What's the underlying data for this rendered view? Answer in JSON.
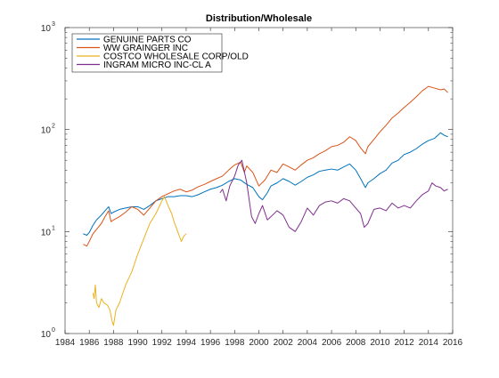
{
  "chart_data": {
    "type": "line",
    "title": "Distribution/Wholesale",
    "xlabel": "",
    "ylabel": "",
    "y_scale": "log",
    "xlim": [
      1984,
      2016
    ],
    "ylim": [
      1,
      1000
    ],
    "x_ticks": [
      1984,
      1986,
      1988,
      1990,
      1992,
      1994,
      1996,
      1998,
      2000,
      2002,
      2004,
      2006,
      2008,
      2010,
      2012,
      2014,
      2016
    ],
    "x_tick_labels": [
      "1984",
      "1986",
      "1988",
      "1990",
      "1992",
      "1994",
      "1996",
      "1998",
      "2000",
      "2002",
      "2004",
      "2006",
      "2008",
      "2010",
      "2012",
      "2014",
      "2016"
    ],
    "y_ticks": [
      {
        "value": 1,
        "base": "10",
        "exp": "0"
      },
      {
        "value": 10,
        "base": "10",
        "exp": "1"
      },
      {
        "value": 100,
        "base": "10",
        "exp": "2"
      },
      {
        "value": 1000,
        "base": "10",
        "exp": "3"
      }
    ],
    "grid": false,
    "legend_position": "top-left",
    "series": [
      {
        "name": "GENUINE PARTS CO",
        "color": "#0072BD",
        "points": [
          [
            1985.5,
            9.5
          ],
          [
            1985.8,
            9.2
          ],
          [
            1986.0,
            9.8
          ],
          [
            1986.3,
            11.5
          ],
          [
            1986.6,
            13.0
          ],
          [
            1987.0,
            14.5
          ],
          [
            1987.3,
            16.0
          ],
          [
            1987.6,
            17.5
          ],
          [
            1987.8,
            15.0
          ],
          [
            1988.0,
            15.5
          ],
          [
            1988.5,
            16.5
          ],
          [
            1989.0,
            17.0
          ],
          [
            1989.5,
            17.5
          ],
          [
            1990.0,
            17.5
          ],
          [
            1990.5,
            16.5
          ],
          [
            1991.0,
            18.0
          ],
          [
            1991.5,
            20.0
          ],
          [
            1992.0,
            21.0
          ],
          [
            1992.5,
            22.0
          ],
          [
            1993.0,
            22.0
          ],
          [
            1993.5,
            22.5
          ],
          [
            1994.0,
            22.5
          ],
          [
            1994.5,
            22.0
          ],
          [
            1995.0,
            23.0
          ],
          [
            1995.5,
            24.5
          ],
          [
            1996.0,
            26.0
          ],
          [
            1996.5,
            27.0
          ],
          [
            1997.0,
            28.5
          ],
          [
            1997.5,
            31.0
          ],
          [
            1998.0,
            33.0
          ],
          [
            1998.5,
            32.0
          ],
          [
            1999.0,
            29.0
          ],
          [
            1999.5,
            27.0
          ],
          [
            2000.0,
            22.0
          ],
          [
            2000.3,
            20.5
          ],
          [
            2000.7,
            24.0
          ],
          [
            2001.0,
            28.0
          ],
          [
            2001.5,
            30.0
          ],
          [
            2002.0,
            33.0
          ],
          [
            2002.5,
            31.0
          ],
          [
            2003.0,
            28.5
          ],
          [
            2003.5,
            31.0
          ],
          [
            2004.0,
            34.0
          ],
          [
            2004.5,
            36.0
          ],
          [
            2005.0,
            39.0
          ],
          [
            2005.5,
            40.0
          ],
          [
            2006.0,
            41.0
          ],
          [
            2006.5,
            40.0
          ],
          [
            2007.0,
            43.0
          ],
          [
            2007.5,
            46.0
          ],
          [
            2008.0,
            40.0
          ],
          [
            2008.4,
            33.0
          ],
          [
            2008.8,
            27.0
          ],
          [
            2009.0,
            30.0
          ],
          [
            2009.5,
            33.0
          ],
          [
            2010.0,
            37.0
          ],
          [
            2010.5,
            40.0
          ],
          [
            2011.0,
            47.0
          ],
          [
            2011.5,
            50.0
          ],
          [
            2012.0,
            57.0
          ],
          [
            2012.5,
            60.0
          ],
          [
            2013.0,
            65.0
          ],
          [
            2013.5,
            72.0
          ],
          [
            2014.0,
            78.0
          ],
          [
            2014.5,
            82.0
          ],
          [
            2015.0,
            93.0
          ],
          [
            2015.3,
            88.0
          ],
          [
            2015.6,
            85.0
          ]
        ]
      },
      {
        "name": "WW GRAINGER INC",
        "color": "#D95319",
        "points": [
          [
            1985.5,
            7.5
          ],
          [
            1985.8,
            7.2
          ],
          [
            1986.0,
            8.0
          ],
          [
            1986.3,
            9.5
          ],
          [
            1986.6,
            10.5
          ],
          [
            1987.0,
            12.0
          ],
          [
            1987.3,
            14.0
          ],
          [
            1987.6,
            16.0
          ],
          [
            1987.8,
            12.5
          ],
          [
            1988.0,
            13.0
          ],
          [
            1988.5,
            14.0
          ],
          [
            1989.0,
            15.5
          ],
          [
            1989.5,
            17.5
          ],
          [
            1990.0,
            16.5
          ],
          [
            1990.5,
            14.5
          ],
          [
            1991.0,
            17.0
          ],
          [
            1991.5,
            20.0
          ],
          [
            1992.0,
            22.0
          ],
          [
            1992.5,
            23.5
          ],
          [
            1993.0,
            25.0
          ],
          [
            1993.5,
            26.0
          ],
          [
            1994.0,
            24.5
          ],
          [
            1994.5,
            25.5
          ],
          [
            1995.0,
            27.5
          ],
          [
            1995.5,
            29.0
          ],
          [
            1996.0,
            31.0
          ],
          [
            1996.5,
            33.0
          ],
          [
            1997.0,
            35.0
          ],
          [
            1997.5,
            40.0
          ],
          [
            1998.0,
            45.0
          ],
          [
            1998.5,
            48.0
          ],
          [
            1998.8,
            38.0
          ],
          [
            1999.0,
            44.0
          ],
          [
            1999.5,
            38.0
          ],
          [
            2000.0,
            28.0
          ],
          [
            2000.5,
            32.0
          ],
          [
            2001.0,
            40.0
          ],
          [
            2001.5,
            38.0
          ],
          [
            2002.0,
            46.0
          ],
          [
            2002.5,
            43.0
          ],
          [
            2003.0,
            40.0
          ],
          [
            2003.5,
            45.0
          ],
          [
            2004.0,
            50.0
          ],
          [
            2004.5,
            53.0
          ],
          [
            2005.0,
            58.0
          ],
          [
            2005.5,
            62.0
          ],
          [
            2006.0,
            68.0
          ],
          [
            2006.5,
            70.0
          ],
          [
            2007.0,
            75.0
          ],
          [
            2007.5,
            85.0
          ],
          [
            2008.0,
            78.0
          ],
          [
            2008.4,
            66.0
          ],
          [
            2008.8,
            58.0
          ],
          [
            2009.0,
            68.0
          ],
          [
            2009.5,
            80.0
          ],
          [
            2010.0,
            95.0
          ],
          [
            2010.5,
            110.0
          ],
          [
            2011.0,
            130.0
          ],
          [
            2011.5,
            145.0
          ],
          [
            2012.0,
            165.0
          ],
          [
            2012.5,
            185.0
          ],
          [
            2013.0,
            210.0
          ],
          [
            2013.5,
            240.0
          ],
          [
            2014.0,
            265.0
          ],
          [
            2014.5,
            255.0
          ],
          [
            2015.0,
            245.0
          ],
          [
            2015.3,
            250.0
          ],
          [
            2015.6,
            230.0
          ]
        ]
      },
      {
        "name": "COSTCO WHOLESALE CORP/OLD",
        "color": "#EDB120",
        "points": [
          [
            1986.3,
            2.5
          ],
          [
            1986.4,
            2.2
          ],
          [
            1986.5,
            3.0
          ],
          [
            1986.6,
            2.0
          ],
          [
            1986.8,
            1.8
          ],
          [
            1987.0,
            2.2
          ],
          [
            1987.2,
            2.0
          ],
          [
            1987.5,
            1.9
          ],
          [
            1987.7,
            1.7
          ],
          [
            1987.9,
            1.3
          ],
          [
            1988.0,
            1.2
          ],
          [
            1988.2,
            1.7
          ],
          [
            1988.5,
            2.0
          ],
          [
            1989.0,
            3.0
          ],
          [
            1989.5,
            4.0
          ],
          [
            1990.0,
            6.0
          ],
          [
            1990.5,
            8.5
          ],
          [
            1991.0,
            12.0
          ],
          [
            1991.5,
            15.0
          ],
          [
            1992.0,
            20.0
          ],
          [
            1992.2,
            22.0
          ],
          [
            1992.5,
            18.0
          ],
          [
            1992.8,
            15.0
          ],
          [
            1993.0,
            12.5
          ],
          [
            1993.3,
            10.0
          ],
          [
            1993.6,
            8.0
          ],
          [
            1993.8,
            9.0
          ],
          [
            1994.0,
            9.5
          ]
        ]
      },
      {
        "name": "INGRAM MICRO INC-CL A",
        "color": "#7E2F8E",
        "points": [
          [
            1996.8,
            24.0
          ],
          [
            1997.0,
            26.0
          ],
          [
            1997.3,
            20.0
          ],
          [
            1997.6,
            28.0
          ],
          [
            1998.0,
            35.0
          ],
          [
            1998.3,
            45.0
          ],
          [
            1998.6,
            50.0
          ],
          [
            1999.0,
            30.0
          ],
          [
            1999.4,
            14.0
          ],
          [
            1999.7,
            12.0
          ],
          [
            2000.0,
            15.0
          ],
          [
            2000.3,
            18.0
          ],
          [
            2000.7,
            13.0
          ],
          [
            2001.0,
            14.0
          ],
          [
            2001.5,
            16.0
          ],
          [
            2002.0,
            14.5
          ],
          [
            2002.5,
            11.0
          ],
          [
            2003.0,
            10.0
          ],
          [
            2003.5,
            12.5
          ],
          [
            2004.0,
            17.0
          ],
          [
            2004.5,
            14.5
          ],
          [
            2005.0,
            18.0
          ],
          [
            2005.5,
            19.5
          ],
          [
            2006.0,
            20.0
          ],
          [
            2006.5,
            19.0
          ],
          [
            2007.0,
            21.0
          ],
          [
            2007.5,
            20.0
          ],
          [
            2008.0,
            17.0
          ],
          [
            2008.4,
            15.0
          ],
          [
            2008.7,
            11.0
          ],
          [
            2009.0,
            12.0
          ],
          [
            2009.5,
            16.5
          ],
          [
            2010.0,
            17.0
          ],
          [
            2010.5,
            16.0
          ],
          [
            2011.0,
            19.0
          ],
          [
            2011.5,
            17.0
          ],
          [
            2012.0,
            18.0
          ],
          [
            2012.5,
            17.0
          ],
          [
            2013.0,
            20.0
          ],
          [
            2013.5,
            23.0
          ],
          [
            2014.0,
            25.0
          ],
          [
            2014.3,
            30.0
          ],
          [
            2014.6,
            28.0
          ],
          [
            2015.0,
            27.0
          ],
          [
            2015.3,
            25.0
          ],
          [
            2015.6,
            26.0
          ]
        ]
      }
    ]
  }
}
